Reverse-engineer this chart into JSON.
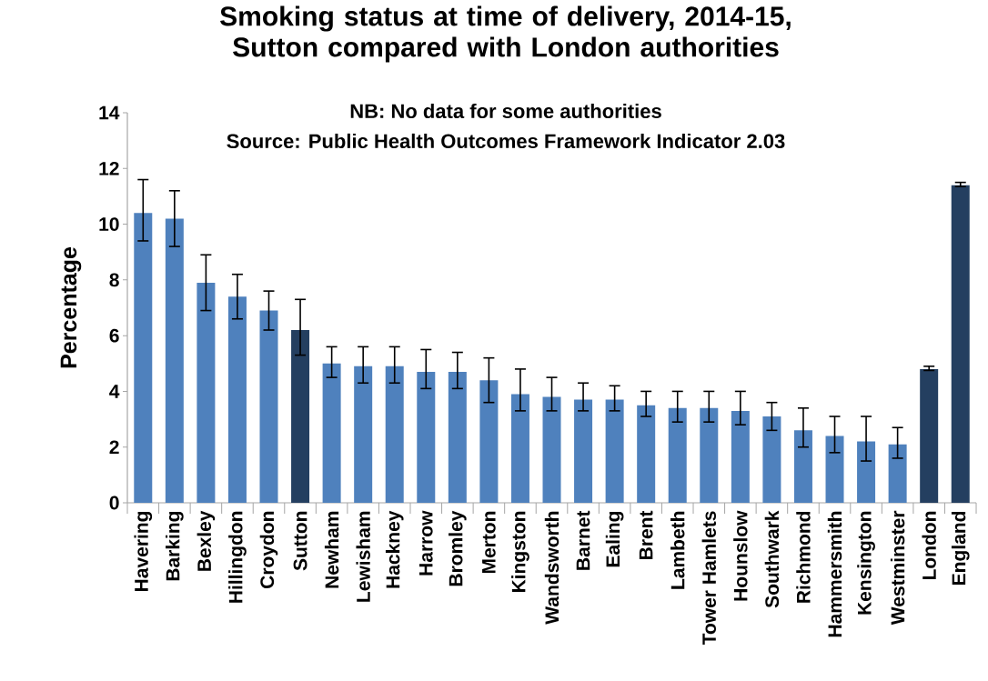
{
  "chart_data": {
    "type": "bar",
    "title": "Smoking status at time of delivery, 2014-15, Sutton compared with London authorities",
    "subtitle": "NB: No data for some authorities",
    "annotations": [
      "Source: Public Health Outcomes Framework Indicator 2.03"
    ],
    "ylabel": "Percentage",
    "categories": [
      "Havering",
      "Barking",
      "Bexley",
      "Hillingdon",
      "Croydon",
      "Sutton",
      "Newham",
      "Lewisham",
      "Hackney",
      "Harrow",
      "Bromley",
      "Merton",
      "Kingston",
      "Wandsworth",
      "Barnet",
      "Ealing",
      "Brent",
      "Lambeth",
      "Tower Hamlets",
      "Hounslow",
      "Southwark",
      "Richmond",
      "Hammersmith",
      "Kensington",
      "Westminster",
      "London",
      "England"
    ],
    "values": [
      10.4,
      10.2,
      7.9,
      7.4,
      6.9,
      6.2,
      5.0,
      4.9,
      4.9,
      4.7,
      4.7,
      4.4,
      3.9,
      3.8,
      3.7,
      3.7,
      3.5,
      3.4,
      3.4,
      3.3,
      3.1,
      2.6,
      2.4,
      2.2,
      2.1,
      4.8,
      11.4
    ],
    "errors": [
      [
        9.4,
        11.6
      ],
      [
        9.2,
        11.2
      ],
      [
        6.9,
        8.9
      ],
      [
        6.6,
        8.2
      ],
      [
        6.2,
        7.6
      ],
      [
        5.3,
        7.3
      ],
      [
        4.5,
        5.6
      ],
      [
        4.3,
        5.6
      ],
      [
        4.3,
        5.6
      ],
      [
        4.1,
        5.5
      ],
      [
        4.1,
        5.4
      ],
      [
        3.6,
        5.2
      ],
      [
        3.3,
        4.8
      ],
      [
        3.3,
        4.5
      ],
      [
        3.3,
        4.3
      ],
      [
        3.3,
        4.2
      ],
      [
        3.1,
        4.0
      ],
      [
        2.9,
        4.0
      ],
      [
        2.9,
        4.0
      ],
      [
        2.8,
        4.0
      ],
      [
        2.6,
        3.6
      ],
      [
        2.0,
        3.4
      ],
      [
        1.8,
        3.1
      ],
      [
        1.5,
        3.1
      ],
      [
        1.6,
        2.7
      ],
      [
        4.75,
        4.9
      ],
      [
        11.35,
        11.5
      ]
    ],
    "colors": [
      "#4f81bd",
      "#4f81bd",
      "#4f81bd",
      "#4f81bd",
      "#4f81bd",
      "#243f60",
      "#4f81bd",
      "#4f81bd",
      "#4f81bd",
      "#4f81bd",
      "#4f81bd",
      "#4f81bd",
      "#4f81bd",
      "#4f81bd",
      "#4f81bd",
      "#4f81bd",
      "#4f81bd",
      "#4f81bd",
      "#4f81bd",
      "#4f81bd",
      "#4f81bd",
      "#4f81bd",
      "#4f81bd",
      "#4f81bd",
      "#4f81bd",
      "#243f60",
      "#243f60"
    ],
    "ylim": [
      0,
      14
    ],
    "yticks": [
      0,
      2,
      4,
      6,
      8,
      10,
      12,
      14
    ],
    "grid": false
  }
}
